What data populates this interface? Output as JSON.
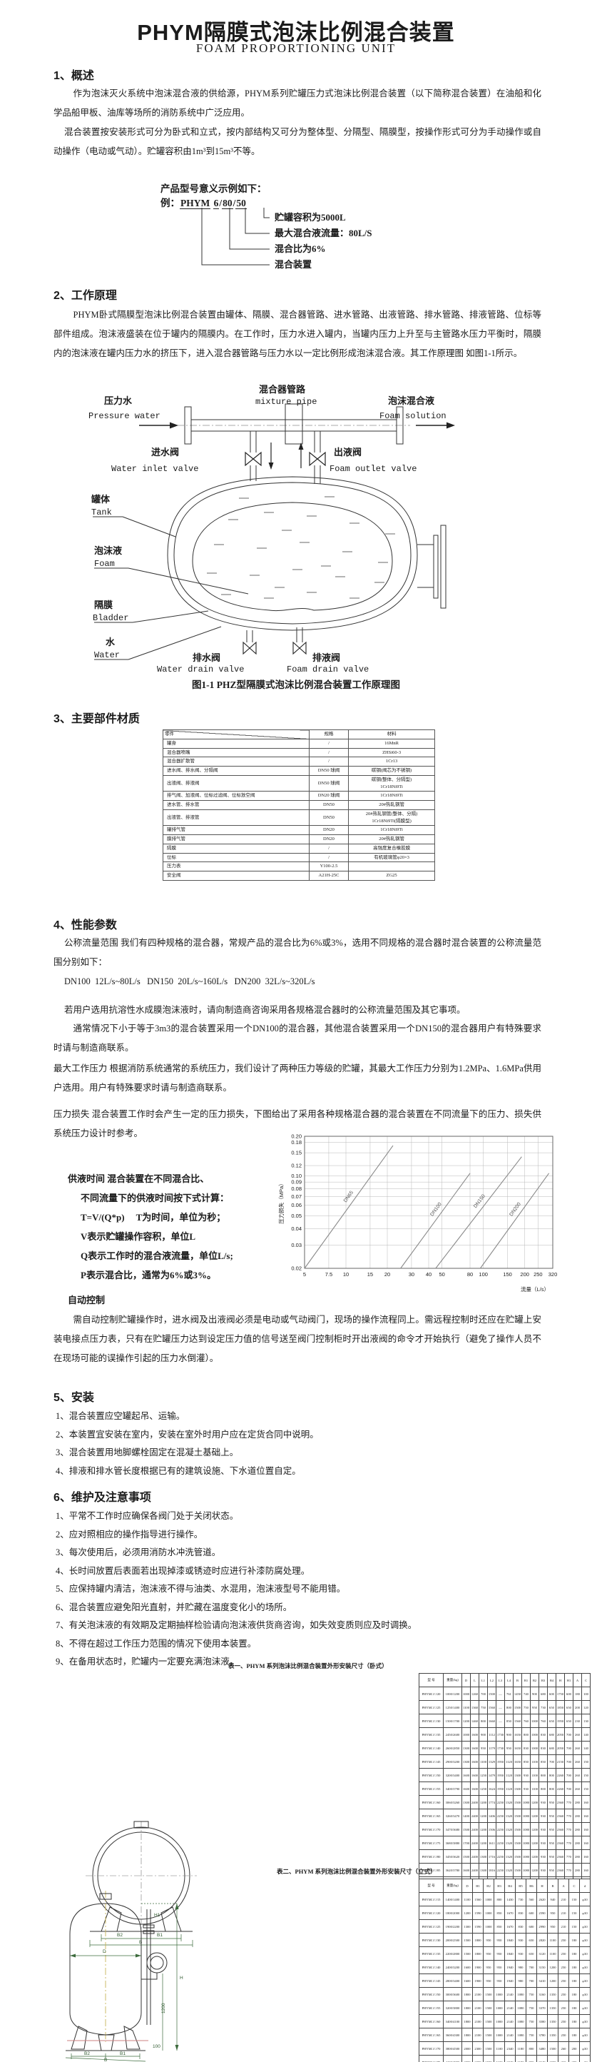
{
  "page": {
    "title": "PHYM隔膜式泡沫比例混合装置",
    "subtitle": "FOAM PROPORTIONING UNIT"
  },
  "section1": {
    "heading": "1、概述",
    "p1": "作为泡沫灭火系统中泡沫混合液的供给源，PHYM系列贮罐压力式泡沫比例混合装置（以下简称混合装置）在油船和化学品船甲板、油库等场所的消防系统中广泛应用。",
    "p2": "混合装置按安装形式可分为卧式和立式，按内部结构又可分为整体型、分隔型、隔膜型，按操作形式可分为手动操作或自动操作（电动或气动）。贮罐容积由1m³到15m³不等。",
    "model_example": {
      "intro": "产品型号意义示例如下：",
      "prefix": "例：",
      "part1": "PHYM",
      "part2": "6",
      "part3": "80",
      "part4": "50",
      "sep": "/",
      "callouts": [
        "贮罐容积为5000L",
        "最大混合液流量：80L/S",
        "混合比为6%",
        "混合装置"
      ]
    }
  },
  "section2": {
    "heading": "2、工作原理",
    "p1": "PHYM卧式隔膜型泡沫比例混合装置由罐体、隔膜、混合器管路、进水管路、出液管路、排水管路、排液管路、位标等部件组成。泡沫液盛装在位于罐内的隔膜内。在工作时，压力水进入罐内，当罐内压力上升至与主管路水压力平衡时，隔膜内的泡沫液在罐内压力水的挤压下，进入混合器管路与压力水以一定比例形成泡沫混合液。其工作原理图 如图1-1所示。",
    "figure": {
      "caption": "图1-1 PHZ型隔膜式泡沫比例混合装置工作原理图",
      "labels": {
        "pressure_water_cn": "压力水",
        "pressure_water_en": "Pressure water",
        "mixture_pipe_cn": "混合器管路",
        "mixture_pipe_en": "mixture pipe",
        "foam_solution_cn": "泡沫混合液",
        "foam_solution_en": "Foam solution",
        "water_inlet_cn": "进水阀",
        "water_inlet_en": "Water inlet valve",
        "foam_outlet_cn": "出液阀",
        "foam_outlet_en": "Foam outlet valve",
        "tank_cn": "罐体",
        "tank_en": "Tank",
        "foam_cn": "泡沫液",
        "foam_en": "Foam",
        "bladder_cn": "隔膜",
        "bladder_en": "Bladder",
        "water_cn": "水",
        "water_en": "Water",
        "water_drain_cn": "排水阀",
        "water_drain_en": "Water drain valve",
        "foam_drain_cn": "排液阀",
        "foam_drain_en": "Foam drain valve"
      }
    }
  },
  "section3": {
    "heading": "3、主要部件材质",
    "table": {
      "headers": [
        "零件",
        "规格",
        "材料"
      ],
      "rows": [
        [
          "罐身",
          "/",
          "16MnR"
        ],
        [
          "混合器喷嘴",
          "/",
          "ZHSi60-3"
        ],
        [
          "混合器扩散管",
          "/",
          "1Cr13"
        ],
        [
          "进水阀、排水阀、分隔阀",
          "DN50 球阀",
          "碳钢(阀芯为不锈钢)"
        ],
        [
          "出液阀、排液阀",
          "DN50 球阀",
          "碳钢(整体、分隔型)\n1Cr18Ni9Ti"
        ],
        [
          "排气阀、加液阀、位标过滤阀、位标放空阀",
          "DN20 球阀",
          "1Cr18Ni9Ti"
        ],
        [
          "进水管、排水管",
          "DN50",
          "20#热轧钢管"
        ],
        [
          "出液管、排液管",
          "DN50",
          "20#热轧钢管(整体、分隔)\n1Cr18Ni9Ti(隔膜型)"
        ],
        [
          "罐排气管",
          "DN20",
          "1Cr18Ni9Ti"
        ],
        [
          "膜排气管",
          "DN20",
          "20#热轧钢管"
        ],
        [
          "隔膜",
          "/",
          "高强度复合橡胶膜"
        ],
        [
          "位标",
          "/",
          "有机玻璃管φ20×3"
        ],
        [
          "压力表",
          "Y100-2.5",
          ""
        ],
        [
          "安全阀",
          "A21H-25C",
          "ZG25"
        ]
      ]
    }
  },
  "section4": {
    "heading": "4、性能参数",
    "p1": "公称流量范围  我们有四种规格的混合器，常规产品的混合比为6%或3%，选用不同规格的混合器时混合装置的公称流量范围分别如下：",
    "flow_line": "DN100  12L/s~80L/s   DN150  20L/s~160L/s   DN200  32L/s~320L/s",
    "p3": "若用户选用抗溶性水成膜泡沫液时，请向制造商咨询采用各规格混合器时的公称流量范围及其它事项。",
    "p4": "通常情况下小于等于3m3的混合装置采用一个DN100的混合器，其他混合装置采用一个DN150的混合器用户有特殊要求时请与制造商联系。",
    "p5": "最大工作压力  根据消防系统通常的系统压力，我们设计了两种压力等级的贮罐，其最大工作压力分别为1.2MPa、1.6MPa供用户选用。用户有特殊要求时请与制造商联系。",
    "p6": "压力损失  混合装置工作时会产生一定的压力损失，下图给出了采用各种规格混合器的混合装置在不同流量下的压力、损失供系统压力设计时参考。",
    "supply_lines": [
      "供液时间  混合装置在不同混合比、",
      "不同流量下的供液时间按下式计算：",
      "T=V/(Q*p)　  T为时间，单位为秒；",
      "V表示贮罐操作容积，单位L",
      "Q表示工作时的混合液流量，单位L/s;",
      "P表示混合比，通常为6%或3%。"
    ],
    "auto_heading": "自动控制",
    "auto_p": "需自动控制贮罐操作时，进水阀及出液阀必须是电动或气动阀门，现场的操作流程同上。需远程控制时还应在贮罐上安装电接点压力表，只有在贮罐压力达到设定压力值的信号送至阀门控制柜时开出液阀的命令才开始执行（避免了操作人员不在现场可能的误操作引起的压力水倒灌）。"
  },
  "chart_data": {
    "type": "line",
    "scale": "log-log",
    "grid": true,
    "xlabel": "流量（L/s）",
    "ylabel": "压力损失（MPa）",
    "xlim": [
      5,
      320
    ],
    "ylim": [
      0.02,
      0.2
    ],
    "x_ticks": [
      5,
      7.5,
      10,
      15,
      20,
      30,
      40,
      50,
      80,
      100,
      150,
      200,
      250,
      320
    ],
    "y_ticks": [
      0.02,
      0.03,
      0.04,
      0.05,
      0.06,
      0.07,
      0.08,
      0.09,
      0.1,
      0.12,
      0.15,
      0.18,
      0.2
    ],
    "series": [
      {
        "name": "DN65",
        "points": [
          [
            5,
            0.02
          ],
          [
            22,
            0.17
          ]
        ]
      },
      {
        "name": "DN100",
        "points": [
          [
            25,
            0.02
          ],
          [
            80,
            0.105
          ]
        ]
      },
      {
        "name": "DN150",
        "points": [
          [
            45,
            0.02
          ],
          [
            190,
            0.14
          ]
        ]
      },
      {
        "name": "DN200",
        "points": [
          [
            95,
            0.02
          ],
          [
            300,
            0.105
          ]
        ]
      }
    ]
  },
  "section5": {
    "heading": "5、安装",
    "items": [
      "1、混合装置应空罐起吊、运输。",
      "2、本装置宜安装在室内，安装在室外时用户应在定货合同中说明。",
      "3、混合装置用地脚螺栓固定在混凝土基础上。",
      "4、排液和排水管长度根据已有的建筑设施、下水道位置自定。"
    ]
  },
  "section6": {
    "heading": "6、维护及注意事项",
    "items": [
      "1、平常不工作时应确保各阀门处于关闭状态。",
      "2、应对照相应的操作指导进行操作。",
      "3、每次使用后，必须用消防水冲洗管道。",
      "4、长时间放置后表面若出现掉漆或锈迹时应进行补漆防腐处理。",
      "5、应保持罐内清洁，泡沫液不得与油类、水混用，泡沫液型号不能用错。",
      "6、混合装置应避免阳光直射，并贮藏在温度变化小的场所。",
      "7、有关泡沫液的有效期及定期抽样检验请向泡沫液供货商咨询，如失效变质则应及时调换。",
      "8、不得在超过工作压力范围的情况下使用本装置。",
      "9、在备用状态时，贮罐内一定要充满泡沫液。"
    ]
  },
  "table1": {
    "caption": "表一、PHYM 系列泡沫比例混合装置外形安装尺寸（卧式）",
    "headers": [
      "型  号",
      "重量(kg)",
      "D",
      "L",
      "L1",
      "L2",
      "L3",
      "L4",
      "B",
      "B1",
      "B2",
      "B3",
      "B4",
      "H",
      "H1",
      "A",
      "C"
    ],
    "rows": [
      [
        "PHYM□/□/20",
        "1000/1200",
        "1000",
        "1260",
        "700",
        "1500",
        "—",
        "761",
        "1450",
        "740",
        "900",
        "680",
        "600",
        "1750",
        "600",
        "180",
        "100"
      ],
      [
        "PHYM□/□/25",
        "1250/1400",
        "1100",
        "1360",
        "750",
        "1560",
        "—",
        "800",
        "1500",
        "750",
        "950",
        "730",
        "650",
        "1850",
        "650",
        "200",
        "120"
      ],
      [
        "PHYM□/□/30",
        "1500/1700",
        "1200",
        "1460",
        "800",
        "1660",
        "—",
        "850",
        "1560",
        "760",
        "1000",
        "760",
        "650",
        "1950",
        "650",
        "230",
        "130"
      ],
      [
        "PHYM□/□/35",
        "2450/2600",
        "1000",
        "1600",
        "900",
        "1112",
        "1730",
        "900",
        "1650",
        "800",
        "1000",
        "830",
        "680",
        "2050",
        "700",
        "260",
        "140"
      ],
      [
        "PHYM□/□/40",
        "2600/2850",
        "1300",
        "1600",
        "950",
        "1179",
        "1730",
        "950",
        "1650",
        "830",
        "1000",
        "830",
        "680",
        "2050",
        "700",
        "260",
        "140"
      ],
      [
        "PHYM□/□/45",
        "2900/3200",
        "1300",
        "1600",
        "1100",
        "1329",
        "1950",
        "1120",
        "1650",
        "850",
        "1100",
        "850",
        "700",
        "2150",
        "700",
        "260",
        "150"
      ],
      [
        "PHYM□/□/50",
        "3200/3400",
        "1600",
        "1600",
        "1250",
        "1479",
        "1950",
        "1120",
        "1300",
        "930",
        "1100",
        "800",
        "800",
        "2260",
        "700",
        "260",
        "150"
      ],
      [
        "PHYM□/□/55",
        "3400/3790",
        "1600",
        "1600",
        "1250",
        "1624",
        "1950",
        "1120",
        "1300",
        "930",
        "1100",
        "800",
        "800",
        "2260",
        "700",
        "260",
        "150"
      ],
      [
        "PHYM□/□/60",
        "3060/3260",
        "1300",
        "2400",
        "1200",
        "1774",
        "2250",
        "1320",
        "1500",
        "1080",
        "1200",
        "930",
        "950",
        "2360",
        "770",
        "280",
        "160"
      ],
      [
        "PHYM□/□/65",
        "3260/3470",
        "1400",
        "2400",
        "1200",
        "1406",
        "2250",
        "1320",
        "1500",
        "1080",
        "1200",
        "930",
        "950",
        "2360",
        "770",
        "280",
        "160"
      ],
      [
        "PHYM□/□/70",
        "3470/3680",
        "1500",
        "2400",
        "1200",
        "1506",
        "2250",
        "1320",
        "1500",
        "1080",
        "1200",
        "930",
        "950",
        "2360",
        "770",
        "280",
        "160"
      ],
      [
        "PHYM□/□/75",
        "3680/3880",
        "1700",
        "2400",
        "1200",
        "1611",
        "2250",
        "1320",
        "1500",
        "1080",
        "1200",
        "930",
        "950",
        "2360",
        "770",
        "280",
        "160"
      ],
      [
        "PHYM□/□/80",
        "3450/3620",
        "1500",
        "2400",
        "1300",
        "1716",
        "2250",
        "1320",
        "1500",
        "1080",
        "1200",
        "930",
        "950",
        "2360",
        "770",
        "280",
        "160"
      ],
      [
        "PHYM□/□/85",
        "3620/3780",
        "1600",
        "2400",
        "1300",
        "1816",
        "2250",
        "1320",
        "1500",
        "1080",
        "1200",
        "930",
        "950",
        "2360",
        "770",
        "280",
        "160"
      ],
      [
        "PHYM□/□/90",
        "3780/3950",
        "1800",
        "2400",
        "1300",
        "1601",
        "2450",
        "1500",
        "1700",
        "1180",
        "1300",
        "1050",
        "950",
        "2760",
        "850",
        "280",
        "160"
      ],
      [
        "PHYM□/□/95",
        "4280/4620",
        "2000",
        "2700",
        "1400",
        "2016",
        "2450",
        "1500",
        "1700",
        "1180",
        "1300",
        "1050",
        "1650",
        "2760",
        "850",
        "280",
        "160"
      ],
      [
        "PHYM□/□/100",
        "4620/5000",
        "2000",
        "3000",
        "1400",
        "2186",
        "2450",
        "1500",
        "1700",
        "1180",
        "1300",
        "1050",
        "1650",
        "2760",
        "850",
        "280",
        "160"
      ]
    ]
  },
  "table2": {
    "caption": "表二、PHYM 系列泡沫比例混合装置外形安装尺寸（立式）",
    "headers": [
      "型  号",
      "重量(kg)",
      "D",
      "H1",
      "H2",
      "H3",
      "H4",
      "H5",
      "H6",
      "H",
      "B",
      "A",
      "C",
      "d"
    ],
    "rows": [
      [
        "PHYM□/□/15",
        "1400/1400",
        "1100",
        "1560",
        "1000",
        "800",
        "1430",
        "730",
        "560",
        "2620",
        "940",
        "210",
        "150",
        "φ30"
      ],
      [
        "PHYM□/□/20",
        "1800/2000",
        "1200",
        "1590",
        "1000",
        "850",
        "1670",
        "830",
        "600",
        "2590",
        "950",
        "210",
        "150",
        "φ30"
      ],
      [
        "PHYM□/□/25",
        "1900/2200",
        "1300",
        "1590",
        "1000",
        "850",
        "1670",
        "830",
        "600",
        "2990",
        "950",
        "210",
        "150",
        "φ30"
      ],
      [
        "PHYM□/□/30",
        "2000/2500",
        "1500",
        "1800",
        "950",
        "950",
        "1840",
        "930",
        "650",
        "2820",
        "1100",
        "250",
        "180",
        "φ30"
      ],
      [
        "PHYM□/□/35",
        "2200/2800",
        "1500",
        "1800",
        "950",
        "950",
        "1840",
        "930",
        "650",
        "3120",
        "1100",
        "250",
        "180",
        "φ30"
      ],
      [
        "PHYM□/□/40",
        "2400/3200",
        "1600",
        "1900",
        "950",
        "950",
        "1940",
        "980",
        "700",
        "3150",
        "1200",
        "250",
        "180",
        "φ30"
      ],
      [
        "PHYM□/□/45",
        "2800/3400",
        "1600",
        "1900",
        "950",
        "950",
        "1940",
        "980",
        "700",
        "3410",
        "1200",
        "250",
        "180",
        "φ30"
      ],
      [
        "PHYM□/□/50",
        "3000/3600",
        "1800",
        "2100",
        "1500",
        "1000",
        "2140",
        "1080",
        "750",
        "3160",
        "1350",
        "250",
        "180",
        "φ30"
      ],
      [
        "PHYM□/□/55",
        "3200/3800",
        "1800",
        "2100",
        "1500",
        "1000",
        "2140",
        "1080",
        "750",
        "3370",
        "1350",
        "250",
        "180",
        "φ30"
      ],
      [
        "PHYM□/□/60",
        "3400/4100",
        "1800",
        "2100",
        "1500",
        "1000",
        "2140",
        "1080",
        "750",
        "3580",
        "1350",
        "250",
        "180",
        "φ30"
      ],
      [
        "PHYM□/□/65",
        "3600/4300",
        "1800",
        "2100",
        "1500",
        "1000",
        "2140",
        "1080",
        "750",
        "3780",
        "1350",
        "250",
        "180",
        "φ30"
      ],
      [
        "PHYM□/□/70",
        "3800/4500",
        "2000",
        "2300",
        "1500",
        "1100",
        "2340",
        "1180",
        "800",
        "3480",
        "1500",
        "260",
        "200",
        "φ30"
      ],
      [
        "PHYM□/□/75",
        "4100/4800",
        "2000",
        "2300",
        "1500",
        "1100",
        "2340",
        "1180",
        "800",
        "3640",
        "1500",
        "260",
        "200",
        "φ30"
      ],
      [
        "PHYM□/□/90",
        "4300/5000",
        "2000",
        "2300",
        "1500",
        "1100",
        "2340",
        "1180",
        "800",
        "3810",
        "1500",
        "260",
        "200",
        "φ30"
      ]
    ]
  },
  "drawings": {
    "endview": {
      "dims": [
        "B2",
        "B1",
        "B"
      ]
    },
    "vertical": {
      "dims": [
        "D",
        "H",
        "H1",
        "1200",
        "100",
        "B2",
        "B1",
        "B"
      ]
    }
  }
}
